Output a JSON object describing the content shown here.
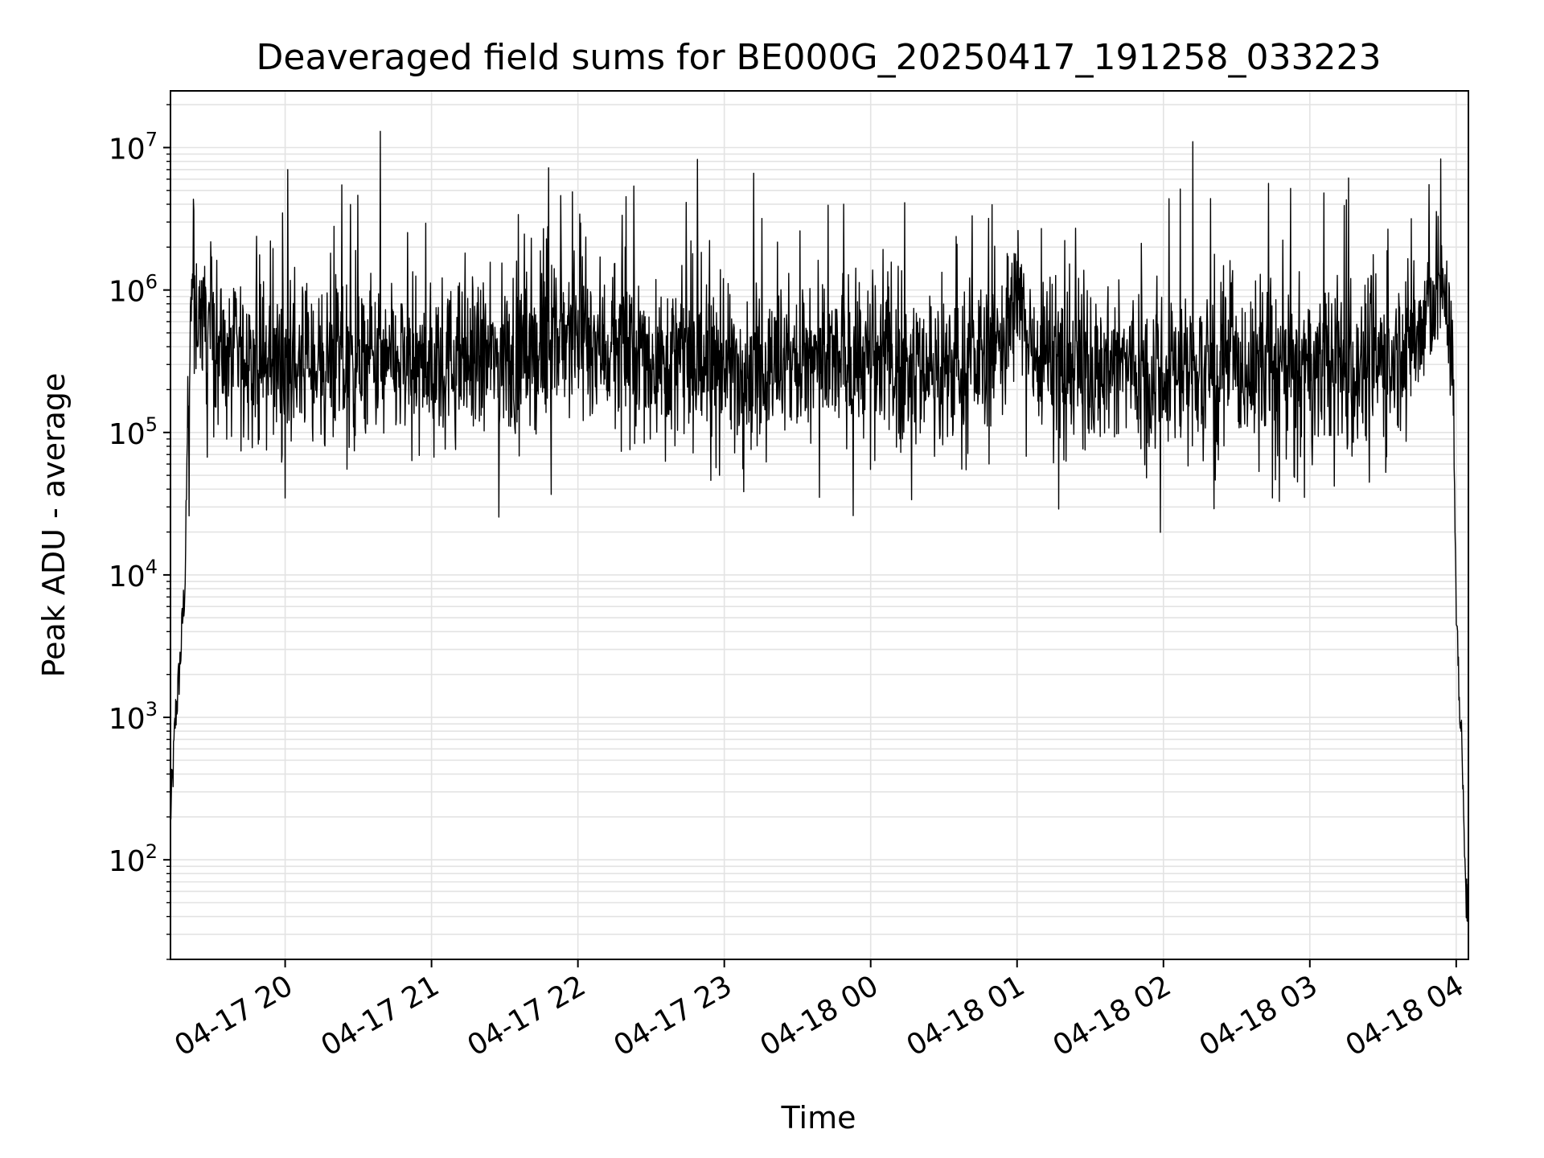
{
  "chart_data": {
    "type": "line",
    "title": "Deaveraged field sums for BE000G_20250417_191258_033223",
    "xlabel": "Time",
    "ylabel": "Peak ADU - average",
    "x_ticks": [
      "04-17 20",
      "04-17 21",
      "04-17 22",
      "04-17 23",
      "04-18 00",
      "04-18 01",
      "04-18 02",
      "04-18 03",
      "04-18 04"
    ],
    "y_ticks": [
      {
        "base": "10",
        "exp": "2",
        "value": 100
      },
      {
        "base": "10",
        "exp": "3",
        "value": 1000
      },
      {
        "base": "10",
        "exp": "4",
        "value": 10000
      },
      {
        "base": "10",
        "exp": "5",
        "value": 100000
      },
      {
        "base": "10",
        "exp": "6",
        "value": 1000000
      },
      {
        "base": "10",
        "exp": "7",
        "value": 10000000
      }
    ],
    "xlim": [
      "2025-04-17 19:13",
      "2025-04-18 04:05"
    ],
    "ylim": [
      20,
      25000000
    ],
    "yscale": "log",
    "grid": true,
    "series_color": "#000000",
    "series": [
      {
        "baseline": 300000,
        "x": [
          "2025-04-17 19:13",
          "2025-04-17 19:14",
          "2025-04-17 19:15",
          "2025-04-17 19:16",
          "2025-04-17 19:17",
          "2025-04-17 19:18",
          "2025-04-17 19:19",
          "2025-04-17 19:20",
          "2025-04-17 19:21",
          "2025-04-17 19:22",
          "2025-04-17 19:23",
          "2025-04-17 19:25",
          "2025-04-17 19:27",
          "2025-04-17 19:30",
          "2025-04-17 19:33",
          "2025-04-17 19:36",
          "2025-04-17 19:40",
          "2025-04-17 19:50",
          "2025-04-17 20:00",
          "2025-04-17 20:20",
          "2025-04-17 20:40",
          "2025-04-17 21:00",
          "2025-04-17 21:20",
          "2025-04-17 21:40",
          "2025-04-17 21:55",
          "2025-04-17 22:05",
          "2025-04-17 22:20",
          "2025-04-17 22:40",
          "2025-04-17 23:00",
          "2025-04-17 23:20",
          "2025-04-17 23:40",
          "2025-04-18 00:00",
          "2025-04-18 00:20",
          "2025-04-18 00:40",
          "2025-04-18 00:55",
          "2025-04-18 01:00",
          "2025-04-18 01:05",
          "2025-04-18 01:20",
          "2025-04-18 01:40",
          "2025-04-18 02:00",
          "2025-04-18 02:20",
          "2025-04-18 02:40",
          "2025-04-18 03:00",
          "2025-04-18 03:20",
          "2025-04-18 03:35",
          "2025-04-18 03:45",
          "2025-04-18 03:50",
          "2025-04-18 03:53",
          "2025-04-18 03:56",
          "2025-04-18 03:58",
          "2025-04-18 03:59",
          "2025-04-18 04:00",
          "2025-04-18 04:01",
          "2025-04-18 04:02",
          "2025-04-18 04:03",
          "2025-04-18 04:04"
        ],
        "y": [
          200,
          400,
          1000,
          1500,
          2500,
          5000,
          9000,
          100000,
          600000,
          1000000,
          800000,
          700000,
          600000,
          500000,
          400000,
          300000,
          350000,
          300000,
          320000,
          300000,
          280000,
          300000,
          320000,
          350000,
          500000,
          450000,
          350000,
          320000,
          300000,
          280000,
          300000,
          320000,
          300000,
          280000,
          500000,
          800000,
          450000,
          320000,
          300000,
          280000,
          270000,
          280000,
          280000,
          300000,
          350000,
          500000,
          800000,
          1000000,
          900000,
          500000,
          100000,
          5000,
          2000,
          800,
          200,
          50
        ],
        "peaks": [
          {
            "x": "2025-04-17 20:01",
            "y": 7000000
          },
          {
            "x": "2025-04-17 20:20",
            "y": 2800000
          },
          {
            "x": "2025-04-17 20:39",
            "y": 13000000
          },
          {
            "x": "2025-04-17 21:48",
            "y": 7200000
          },
          {
            "x": "2025-04-17 22:47",
            "y": 1800000
          },
          {
            "x": "2025-04-17 23:12",
            "y": 6600000
          },
          {
            "x": "2025-04-17 23:31",
            "y": 2600000
          },
          {
            "x": "2025-04-17 23:49",
            "y": 4000000
          },
          {
            "x": "2025-04-18 00:14",
            "y": 4100000
          },
          {
            "x": "2025-04-18 01:10",
            "y": 2700000
          },
          {
            "x": "2025-04-18 02:12",
            "y": 11000000
          },
          {
            "x": "2025-04-18 02:43",
            "y": 5600000
          }
        ],
        "dips": [
          {
            "x": "2025-04-17 19:28",
            "y": 67000
          },
          {
            "x": "2025-04-17 20:55",
            "y": 69000
          },
          {
            "x": "2025-04-17 21:01",
            "y": 67000
          },
          {
            "x": "2025-04-17 22:58",
            "y": 50000
          },
          {
            "x": "2025-04-17 23:39",
            "y": 35000
          },
          {
            "x": "2025-04-18 00:00",
            "y": 55000
          },
          {
            "x": "2025-04-18 01:53",
            "y": 48000
          },
          {
            "x": "2025-04-18 02:55",
            "y": 45000
          },
          {
            "x": "2025-04-18 03:10",
            "y": 42000
          }
        ]
      }
    ]
  }
}
